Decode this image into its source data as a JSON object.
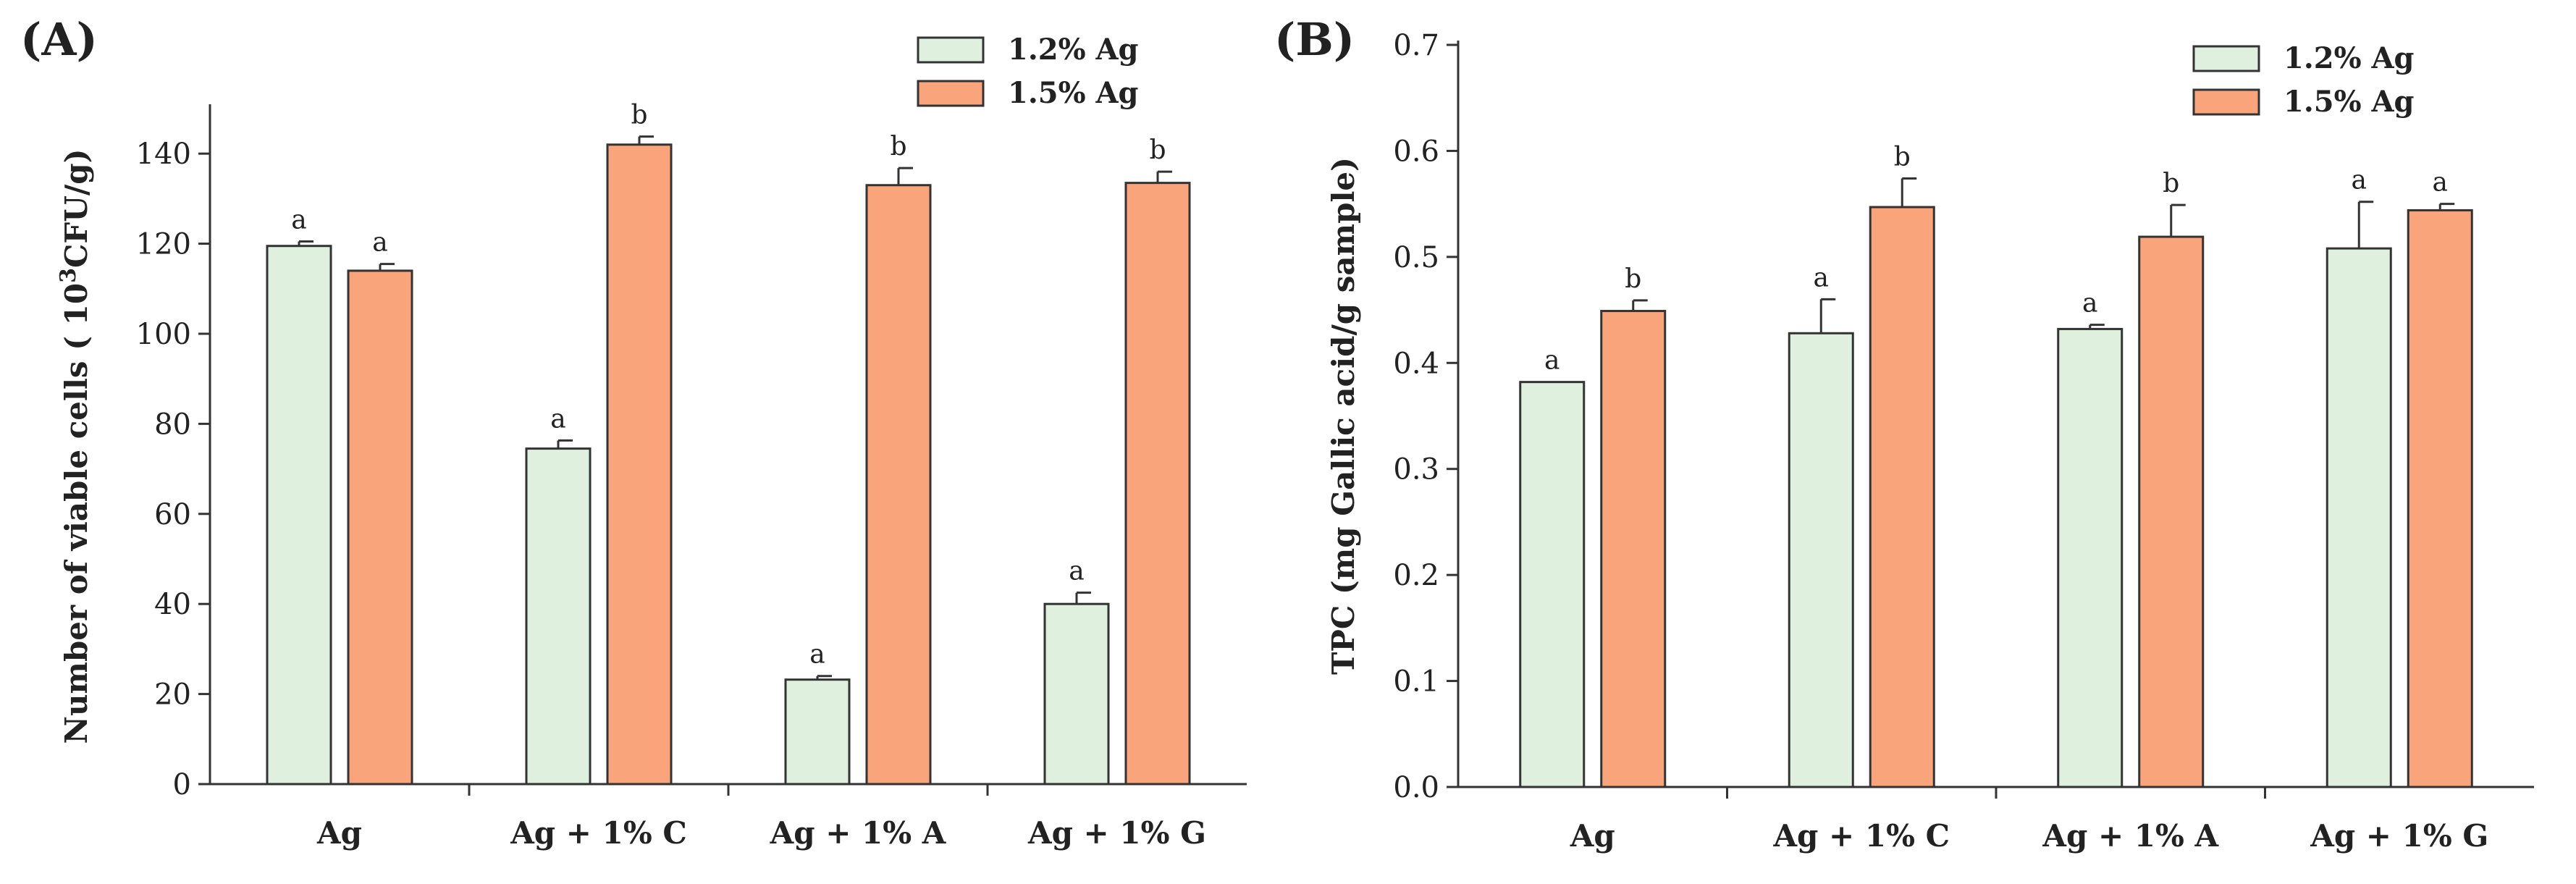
{
  "panels": {
    "a": {
      "label": "(A)"
    },
    "b": {
      "label": "(B)"
    }
  },
  "colors": {
    "series1": "#dff0de",
    "series2": "#f9a47a",
    "axis": "#333333"
  },
  "chart_data": [
    {
      "type": "bar",
      "panel": "A",
      "categories": [
        "Ag",
        "Ag + 1% C",
        "Ag + 1% A",
        "Ag + 1% G"
      ],
      "series": [
        {
          "name": "1.2% Ag",
          "values": [
            119.5,
            74.5,
            23.2,
            40.0
          ],
          "errors": [
            1.0,
            1.8,
            0.8,
            2.5
          ],
          "letters": [
            "a",
            "a",
            "a",
            "a"
          ]
        },
        {
          "name": "1.5% Ag",
          "values": [
            114.0,
            142.0,
            133.0,
            133.5
          ],
          "errors": [
            1.5,
            1.8,
            3.8,
            2.5
          ],
          "letters": [
            "a",
            "b",
            "b",
            "b"
          ]
        }
      ],
      "ylabel_main": "Number of viable cells ( 10",
      "ylabel_sup": "3",
      "ylabel_tail": "CFU/g)",
      "ylim": [
        0,
        150
      ],
      "yticks": [
        "0",
        "20",
        "40",
        "60",
        "80",
        "100",
        "120",
        "140"
      ],
      "legend": [
        "1.2% Ag",
        "1.5% Ag"
      ]
    },
    {
      "type": "bar",
      "panel": "B",
      "categories": [
        "Ag",
        "Ag + 1% C",
        "Ag + 1% A",
        "Ag + 1% G"
      ],
      "series": [
        {
          "name": "1.2% Ag",
          "values": [
            0.382,
            0.428,
            0.432,
            0.508
          ],
          "errors": [
            0,
            0.032,
            0.004,
            0.044
          ],
          "letters": [
            "a",
            "a",
            "a",
            "a"
          ]
        },
        {
          "name": "1.5% Ag",
          "values": [
            0.449,
            0.547,
            0.519,
            0.544
          ],
          "errors": [
            0.01,
            0.027,
            0.03,
            0.006
          ],
          "letters": [
            "b",
            "b",
            "b",
            "a"
          ]
        }
      ],
      "ylabel": "TPC (mg Gallic acid/g sample)",
      "ylim": [
        0,
        0.7
      ],
      "yticks": [
        "0.0",
        "0.1",
        "0.2",
        "0.3",
        "0.4",
        "0.5",
        "0.6",
        "0.7"
      ],
      "legend": [
        "1.2% Ag",
        "1.5% Ag"
      ]
    }
  ]
}
